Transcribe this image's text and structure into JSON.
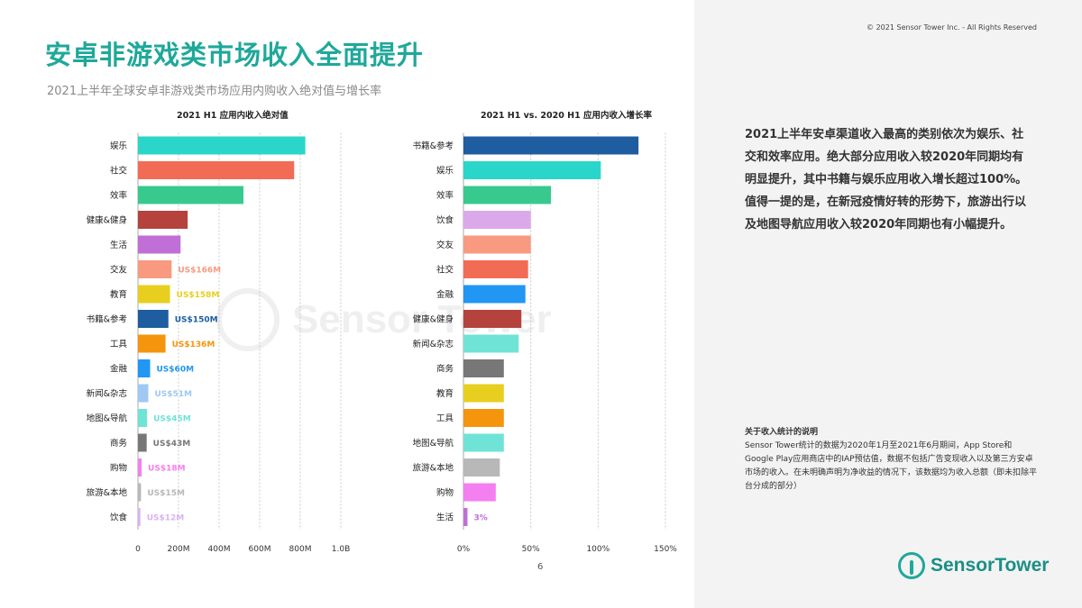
{
  "header": {
    "title": "安卓非游戏类市场收入全面提升",
    "subtitle": "2021上半年全球安卓非游戏类市场应用内购收入绝对值与增长率",
    "copyright": "© 2021 Sensor Tower Inc. - All Rights Reserved"
  },
  "watermark": {
    "text": "Sensor Tower"
  },
  "description": "2021上半年安卓渠道收入最高的类别依次为娱乐、社交和效率应用。绝大部分应用收入较2020年同期均有明显提升，其中书籍与娱乐应用收入增长超过100%。值得一提的是，在新冠疫情好转的形势下，旅游出行以及地图导航应用收入较2020年同期也有小幅提升。",
  "note": {
    "title": "关于收入统计的说明",
    "body": "Sensor Tower统计的数据为2020年1月至2021年6月期间，App Store和Google Play应用商店中的IAP预估值，数据不包括广告变现收入以及第三方安卓市场的收入。在未明确声明为净收益的情况下，该数据均为收入总额（即未扣除平台分成的部分）"
  },
  "page_number": "6",
  "logo": {
    "text": "SensorTower"
  },
  "chart_data": [
    {
      "type": "bar",
      "orientation": "horizontal",
      "title": "2021 H1 应用内收入绝对值",
      "categories": [
        "娱乐",
        "社交",
        "效率",
        "健康&健身",
        "生活",
        "交友",
        "教育",
        "书籍&参考",
        "工具",
        "金融",
        "新闻&杂志",
        "地图&导航",
        "商务",
        "购物",
        "旅游&本地",
        "饮食"
      ],
      "values": [
        825,
        770,
        520,
        245,
        210,
        166,
        158,
        150,
        136,
        60,
        51,
        45,
        43,
        18,
        15,
        12
      ],
      "labels": [
        "",
        "",
        "",
        "",
        "",
        "US$166M",
        "US$158M",
        "US$150M",
        "US$136M",
        "US$60M",
        "US$51M",
        "US$45M",
        "US$43M",
        "US$18M",
        "US$15M",
        "US$12M"
      ],
      "colors": [
        "#2ad6c9",
        "#f26c55",
        "#38c98f",
        "#b5423c",
        "#c06fd6",
        "#f79a80",
        "#e8cf1f",
        "#1d5da0",
        "#f5950e",
        "#2196f3",
        "#9fc8f2",
        "#6fe3d6",
        "#777777",
        "#f47ff0",
        "#b8b8b8",
        "#d9b3f0"
      ],
      "xticks": [
        "0",
        "200M",
        "400M",
        "600M",
        "800M",
        "1.0B"
      ],
      "xlim": [
        0,
        1000
      ],
      "grid": true
    },
    {
      "type": "bar",
      "orientation": "horizontal",
      "title": "2021 H1 vs. 2020 H1 应用内收入增长率",
      "categories": [
        "书籍&参考",
        "娱乐",
        "效率",
        "饮食",
        "交友",
        "社交",
        "金融",
        "健康&健身",
        "新闻&杂志",
        "商务",
        "教育",
        "工具",
        "地图&导航",
        "旅游&本地",
        "购物",
        "生活"
      ],
      "values": [
        130,
        102,
        65,
        50,
        50,
        48,
        46,
        43,
        41,
        30,
        30,
        30,
        30,
        27,
        24,
        3
      ],
      "labels": [
        "",
        "",
        "",
        "",
        "",
        "",
        "",
        "",
        "",
        "",
        "",
        "",
        "",
        "",
        "",
        "3%"
      ],
      "colors": [
        "#1d5da0",
        "#2ad6c9",
        "#38c98f",
        "#dba9ea",
        "#f79a80",
        "#f26c55",
        "#2196f3",
        "#b5423c",
        "#6fe3d6",
        "#777777",
        "#e8cf1f",
        "#f5950e",
        "#6fe3d6",
        "#b8b8b8",
        "#f47ff0",
        "#c06fd6"
      ],
      "xticks": [
        "0%",
        "50%",
        "100%",
        "150%"
      ],
      "xlim": [
        0,
        150
      ],
      "grid": true
    }
  ]
}
